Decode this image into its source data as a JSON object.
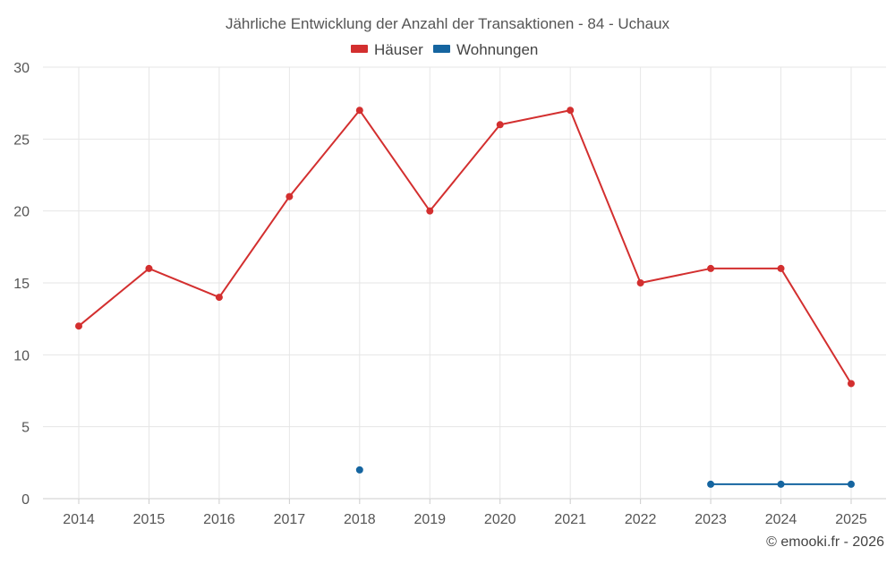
{
  "chart_data": {
    "type": "line",
    "title": "Jährliche Entwicklung der Anzahl der Transaktionen - 84 - Uchaux",
    "categories": [
      "2014",
      "2015",
      "2016",
      "2017",
      "2018",
      "2019",
      "2020",
      "2021",
      "2022",
      "2023",
      "2024",
      "2025"
    ],
    "series": [
      {
        "name": "Häuser",
        "color": "#d32f2f",
        "values": [
          12,
          16,
          14,
          21,
          27,
          20,
          26,
          27,
          15,
          16,
          16,
          8
        ]
      },
      {
        "name": "Wohnungen",
        "color": "#1565a0",
        "values": [
          null,
          null,
          null,
          null,
          2,
          null,
          null,
          null,
          null,
          1,
          1,
          1
        ]
      }
    ],
    "ylim": [
      0,
      30
    ],
    "yticks": [
      0,
      5,
      10,
      15,
      20,
      25,
      30
    ],
    "grid": true,
    "legend": "top-center"
  },
  "credit": "© emooki.fr - 2026"
}
